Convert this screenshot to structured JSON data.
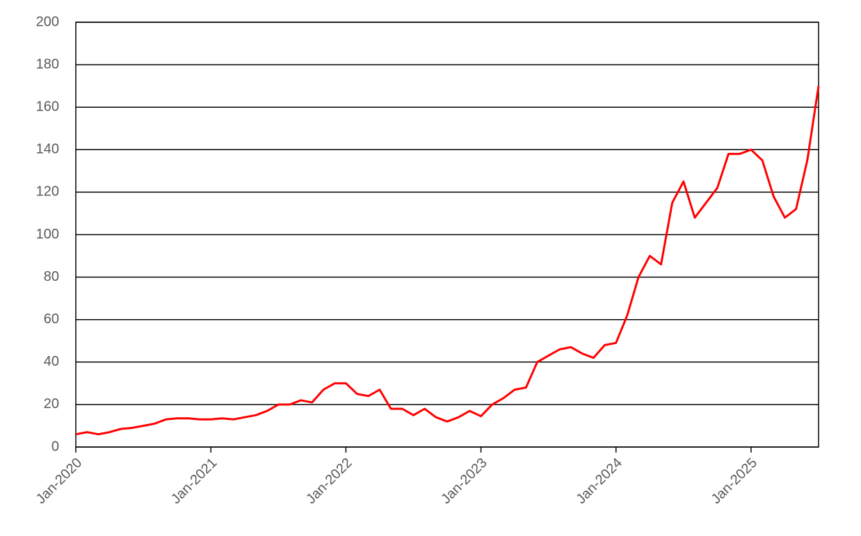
{
  "chart_data": {
    "type": "line",
    "x": [
      "2020-01",
      "2020-02",
      "2020-03",
      "2020-04",
      "2020-05",
      "2020-06",
      "2020-07",
      "2020-08",
      "2020-09",
      "2020-10",
      "2020-11",
      "2020-12",
      "2021-01",
      "2021-02",
      "2021-03",
      "2021-04",
      "2021-05",
      "2021-06",
      "2021-07",
      "2021-08",
      "2021-09",
      "2021-10",
      "2021-11",
      "2021-12",
      "2022-01",
      "2022-02",
      "2022-03",
      "2022-04",
      "2022-05",
      "2022-06",
      "2022-07",
      "2022-08",
      "2022-09",
      "2022-10",
      "2022-11",
      "2022-12",
      "2023-01",
      "2023-02",
      "2023-03",
      "2023-04",
      "2023-05",
      "2023-06",
      "2023-07",
      "2023-08",
      "2023-09",
      "2023-10",
      "2023-11",
      "2023-12",
      "2024-01",
      "2024-02",
      "2024-03",
      "2024-04",
      "2024-05",
      "2024-06",
      "2024-07",
      "2024-08",
      "2024-09",
      "2024-10",
      "2024-11",
      "2024-12",
      "2025-01",
      "2025-02",
      "2025-03",
      "2025-04",
      "2025-05",
      "2025-06",
      "2025-07"
    ],
    "series": [
      {
        "color": "#ff0000",
        "values": [
          6,
          7,
          6,
          7,
          8.5,
          9,
          10,
          11,
          13,
          13.5,
          13.5,
          13,
          13,
          13.5,
          13,
          14,
          15,
          17,
          20,
          20,
          22,
          21,
          27,
          30,
          30,
          25,
          24,
          27,
          18,
          18,
          15,
          18,
          14,
          12,
          14,
          17,
          14.5,
          20,
          23,
          27,
          28,
          40,
          43,
          46,
          47,
          44,
          42,
          48,
          49,
          62,
          80,
          90,
          86,
          115,
          125,
          108,
          115,
          122,
          138,
          138,
          140,
          135,
          118,
          108,
          112,
          135,
          170
        ]
      }
    ],
    "xlim": [
      "2020-01",
      "2025-07"
    ],
    "xticks": [
      {
        "value": "2020-01",
        "label": "Jan-2020"
      },
      {
        "value": "2021-01",
        "label": "Jan-2021"
      },
      {
        "value": "2022-01",
        "label": "Jan-2022"
      },
      {
        "value": "2023-01",
        "label": "Jan-2023"
      },
      {
        "value": "2024-01",
        "label": "Jan-2024"
      },
      {
        "value": "2025-01",
        "label": "Jan-2025"
      }
    ],
    "ylim": [
      0,
      200
    ],
    "yticks": [
      0,
      20,
      40,
      60,
      80,
      100,
      120,
      140,
      160,
      180,
      200
    ],
    "grid": true
  }
}
